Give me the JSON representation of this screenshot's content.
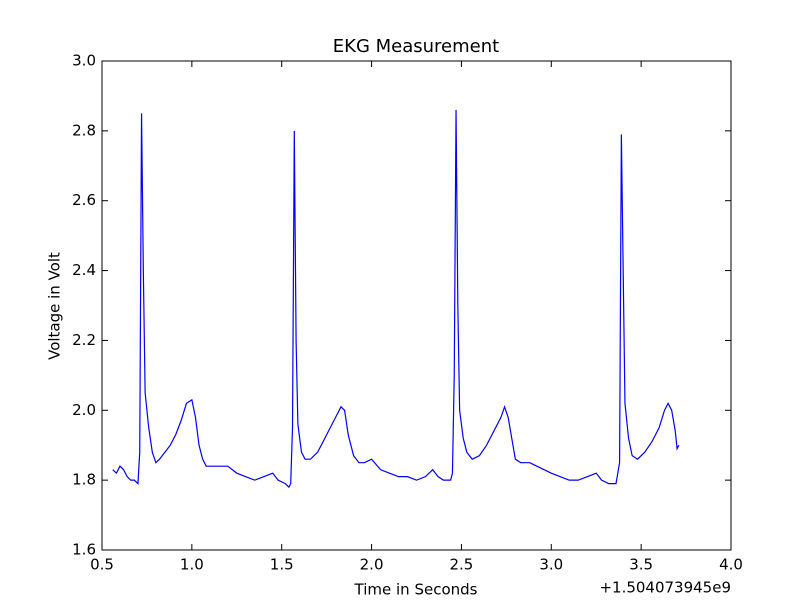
{
  "chart_data": {
    "type": "line",
    "title": "EKG Measurement",
    "x_label": "Time in Seconds",
    "y_label": "Voltage in Volt",
    "x_offset_label": "+1.504073945e9",
    "x": [
      0.56,
      0.58,
      0.6,
      0.62,
      0.64,
      0.66,
      0.68,
      0.7,
      0.71,
      0.72,
      0.73,
      0.74,
      0.76,
      0.78,
      0.8,
      0.82,
      0.85,
      0.88,
      0.91,
      0.94,
      0.97,
      1.0,
      1.02,
      1.04,
      1.06,
      1.08,
      1.1,
      1.15,
      1.2,
      1.25,
      1.3,
      1.35,
      1.4,
      1.45,
      1.48,
      1.52,
      1.54,
      1.55,
      1.56,
      1.57,
      1.58,
      1.59,
      1.61,
      1.63,
      1.66,
      1.7,
      1.74,
      1.78,
      1.81,
      1.83,
      1.85,
      1.87,
      1.9,
      1.93,
      1.96,
      2.0,
      2.05,
      2.1,
      2.15,
      2.2,
      2.25,
      2.3,
      2.34,
      2.37,
      2.4,
      2.44,
      2.45,
      2.46,
      2.47,
      2.48,
      2.49,
      2.51,
      2.53,
      2.56,
      2.6,
      2.64,
      2.68,
      2.72,
      2.74,
      2.76,
      2.78,
      2.8,
      2.83,
      2.88,
      2.92,
      2.96,
      3.0,
      3.05,
      3.1,
      3.15,
      3.2,
      3.25,
      3.28,
      3.32,
      3.36,
      3.38,
      3.39,
      3.4,
      3.41,
      3.43,
      3.45,
      3.48,
      3.52,
      3.56,
      3.6,
      3.63,
      3.65,
      3.67,
      3.69,
      3.7,
      3.71
    ],
    "series": [
      {
        "color": "#0000ff",
        "values": [
          1.83,
          1.82,
          1.84,
          1.83,
          1.81,
          1.8,
          1.8,
          1.79,
          1.88,
          2.85,
          2.4,
          2.05,
          1.95,
          1.88,
          1.85,
          1.86,
          1.88,
          1.9,
          1.93,
          1.97,
          2.02,
          2.03,
          1.98,
          1.9,
          1.86,
          1.84,
          1.84,
          1.84,
          1.84,
          1.82,
          1.81,
          1.8,
          1.81,
          1.82,
          1.8,
          1.79,
          1.78,
          1.79,
          1.95,
          2.8,
          2.2,
          1.96,
          1.88,
          1.86,
          1.86,
          1.88,
          1.92,
          1.96,
          1.99,
          2.01,
          2.0,
          1.93,
          1.87,
          1.85,
          1.85,
          1.86,
          1.83,
          1.82,
          1.81,
          1.81,
          1.8,
          1.81,
          1.83,
          1.81,
          1.8,
          1.8,
          1.82,
          2.1,
          2.86,
          2.3,
          2.0,
          1.92,
          1.88,
          1.86,
          1.87,
          1.9,
          1.94,
          1.98,
          2.01,
          1.98,
          1.92,
          1.86,
          1.85,
          1.85,
          1.84,
          1.83,
          1.82,
          1.81,
          1.8,
          1.8,
          1.81,
          1.82,
          1.8,
          1.79,
          1.79,
          1.85,
          2.79,
          2.4,
          2.02,
          1.92,
          1.87,
          1.86,
          1.88,
          1.91,
          1.95,
          2.0,
          2.02,
          2.0,
          1.94,
          1.89,
          1.9
        ]
      }
    ],
    "xlim": [
      0.5,
      4.0
    ],
    "xticks": [
      0.5,
      {
        "value": 1.0,
        "label": "1.0"
      },
      1.5,
      {
        "value": 2.0,
        "label": "2.0"
      },
      2.5,
      {
        "value": 3.0,
        "label": "3.0"
      },
      3.5,
      {
        "value": 4.0,
        "label": "4.0"
      }
    ],
    "ylim": [
      1.6,
      3.0
    ],
    "yticks": [
      1.6,
      1.8,
      {
        "value": 2.0,
        "label": "2.0"
      },
      2.2,
      2.4,
      2.6,
      2.8,
      {
        "value": 3.0,
        "label": "3.0"
      }
    ],
    "grid": false
  }
}
